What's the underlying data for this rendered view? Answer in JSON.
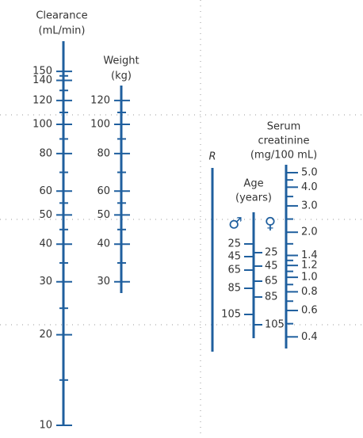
{
  "scales": {
    "clearance": {
      "title": [
        "Clearance",
        "(mL/min)"
      ],
      "labels": [
        150,
        140,
        120,
        100,
        80,
        60,
        50,
        40,
        30,
        20,
        10
      ]
    },
    "weight": {
      "title": [
        "Weight",
        "(kg)"
      ],
      "labels": [
        120,
        100,
        80,
        60,
        50,
        40,
        30
      ]
    },
    "r": {
      "title": "R"
    },
    "age": {
      "title": [
        "Age",
        "(years)"
      ],
      "male": {
        "symbol": "♂",
        "labels": [
          25,
          45,
          65,
          85,
          105
        ]
      },
      "female": {
        "symbol": "♀",
        "labels": [
          25,
          45,
          65,
          85,
          105
        ]
      }
    },
    "creatinine": {
      "title": [
        "Serum",
        "creatinine",
        "(mg/100 mL)"
      ],
      "labels": [
        "5.0",
        "4.0",
        "3.0",
        "2.0",
        "1.4",
        "1.2",
        "1.0",
        "0.8",
        "0.6",
        "0.4"
      ]
    }
  }
}
